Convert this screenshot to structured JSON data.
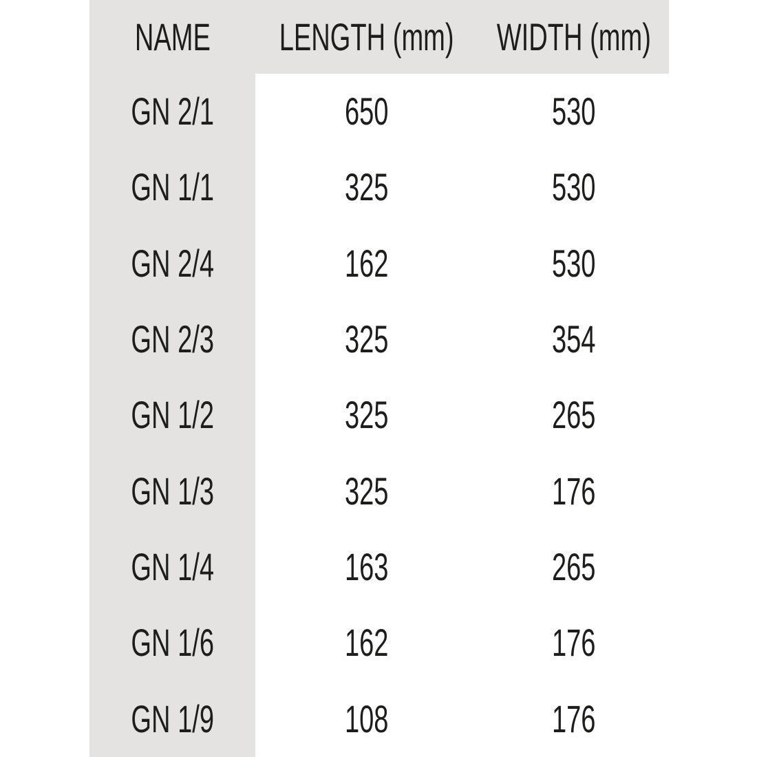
{
  "colors": {
    "page_bg": "#ffffff",
    "header_bg": "#e4e3e1",
    "name_column_bg": "#e4e3e1",
    "text": "#1d1d1b"
  },
  "table": {
    "columns": [
      "NAME",
      "LENGTH (mm)",
      "WIDTH (mm)"
    ],
    "rows": [
      {
        "name": "GN 2/1",
        "length": "650",
        "width": "530"
      },
      {
        "name": "GN 1/1",
        "length": "325",
        "width": "530"
      },
      {
        "name": "GN 2/4",
        "length": "162",
        "width": "530"
      },
      {
        "name": "GN 2/3",
        "length": "325",
        "width": "354"
      },
      {
        "name": "GN 1/2",
        "length": "325",
        "width": "265"
      },
      {
        "name": "GN 1/3",
        "length": "325",
        "width": "176"
      },
      {
        "name": "GN 1/4",
        "length": "163",
        "width": "265"
      },
      {
        "name": "GN 1/6",
        "length": "162",
        "width": "176"
      },
      {
        "name": "GN 1/9",
        "length": "108",
        "width": "176"
      }
    ]
  },
  "chart_data": {
    "type": "table",
    "columns": [
      "NAME",
      "LENGTH (mm)",
      "WIDTH (mm)"
    ],
    "rows": [
      [
        "GN 2/1",
        650,
        530
      ],
      [
        "GN 1/1",
        325,
        530
      ],
      [
        "GN 2/4",
        162,
        530
      ],
      [
        "GN 2/3",
        325,
        354
      ],
      [
        "GN 1/2",
        325,
        265
      ],
      [
        "GN 1/3",
        325,
        176
      ],
      [
        "GN 1/4",
        163,
        265
      ],
      [
        "GN 1/6",
        162,
        176
      ],
      [
        "GN 1/9",
        108,
        176
      ]
    ]
  }
}
